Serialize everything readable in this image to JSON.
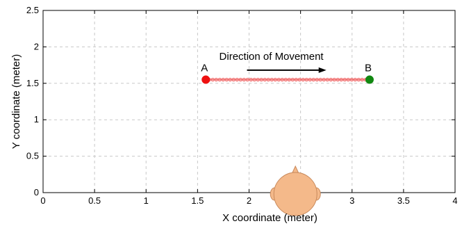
{
  "chart_data": {
    "type": "scatter",
    "xlabel": "X coordinate (meter)",
    "ylabel": "Y coordinate (meter)",
    "xlim": [
      0,
      4
    ],
    "ylim": [
      0,
      2.5
    ],
    "xticks": [
      0,
      0.5,
      1,
      1.5,
      2,
      2.5,
      3,
      3.5,
      4
    ],
    "yticks": [
      0,
      0.5,
      1,
      1.5,
      2,
      2.5
    ],
    "xtick_labels": [
      "0",
      "0.5",
      "1",
      "1.5",
      "2",
      "",
      "3",
      "3.5",
      "4"
    ],
    "ytick_labels": [
      "0",
      "0.5",
      "1",
      "1.5",
      "2",
      "2.5"
    ],
    "grid": true,
    "points": [
      {
        "label": "A",
        "x": 1.58,
        "y": 1.55,
        "color": "#ee1111"
      },
      {
        "label": "B",
        "x": 3.17,
        "y": 1.55,
        "color": "#118811"
      }
    ],
    "path": {
      "x_start": 1.58,
      "x_end": 3.17,
      "y": 1.55,
      "color": "#f07070"
    },
    "annotation": {
      "text": "Direction of Movement",
      "arrow_from_x": 1.98,
      "arrow_to_x": 2.75,
      "y": 1.68
    },
    "listener": {
      "x": 2.45,
      "y": 0,
      "color": "#f4b98a"
    }
  }
}
